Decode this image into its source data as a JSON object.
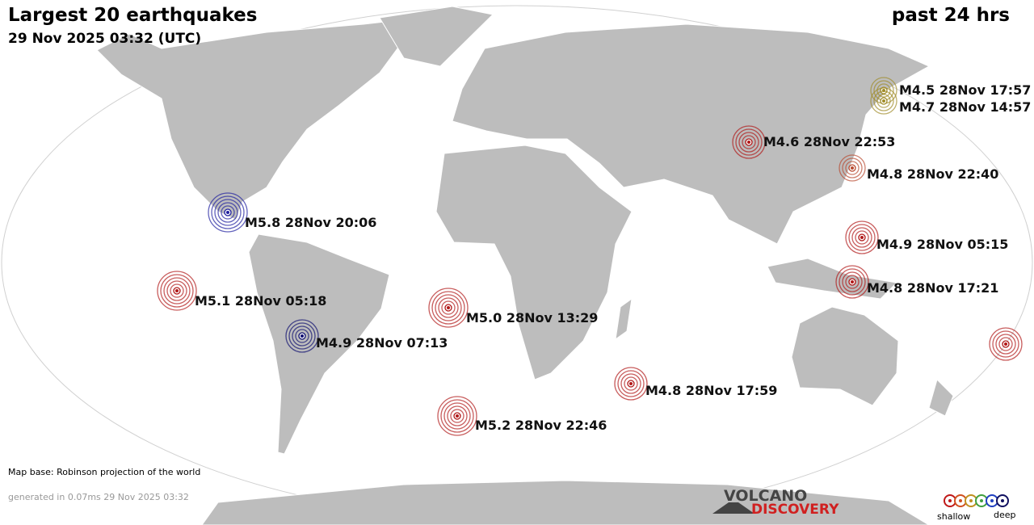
{
  "header": {
    "title": "Largest 20 earthquakes",
    "subtitle": "29 Nov 2025 03:32 (UTC)",
    "period": "past 24 hrs"
  },
  "earthquakes": [
    {
      "label": "M4.5 28Nov 17:57"
    },
    {
      "label": "M4.7 28Nov 14:57"
    },
    {
      "label": "M4.6 28Nov 22:53"
    },
    {
      "label": "M4.8 28Nov 22:40"
    },
    {
      "label": "M5.8 28Nov 20:06"
    },
    {
      "label": "M4.9 28Nov 05:15"
    },
    {
      "label": "M4.8 28Nov 17:21"
    },
    {
      "label": "M5.1 28Nov 05:18"
    },
    {
      "label": "M5.0 28Nov 13:29"
    },
    {
      "label": "M4.9 28Nov 07:13"
    },
    {
      "label": "M4.8 28Nov 17:59"
    },
    {
      "label": "M5.2 28Nov 22:46"
    }
  ],
  "footer": {
    "map_base": "Map base: Robinson projection of the world",
    "generated": "generated in 0.07ms 29 Nov 2025 03:32"
  },
  "logo": {
    "line1": "VOLCANO",
    "line2": "DISCOVERY"
  },
  "legend": {
    "shallow": "shallow",
    "deep": "deep"
  }
}
